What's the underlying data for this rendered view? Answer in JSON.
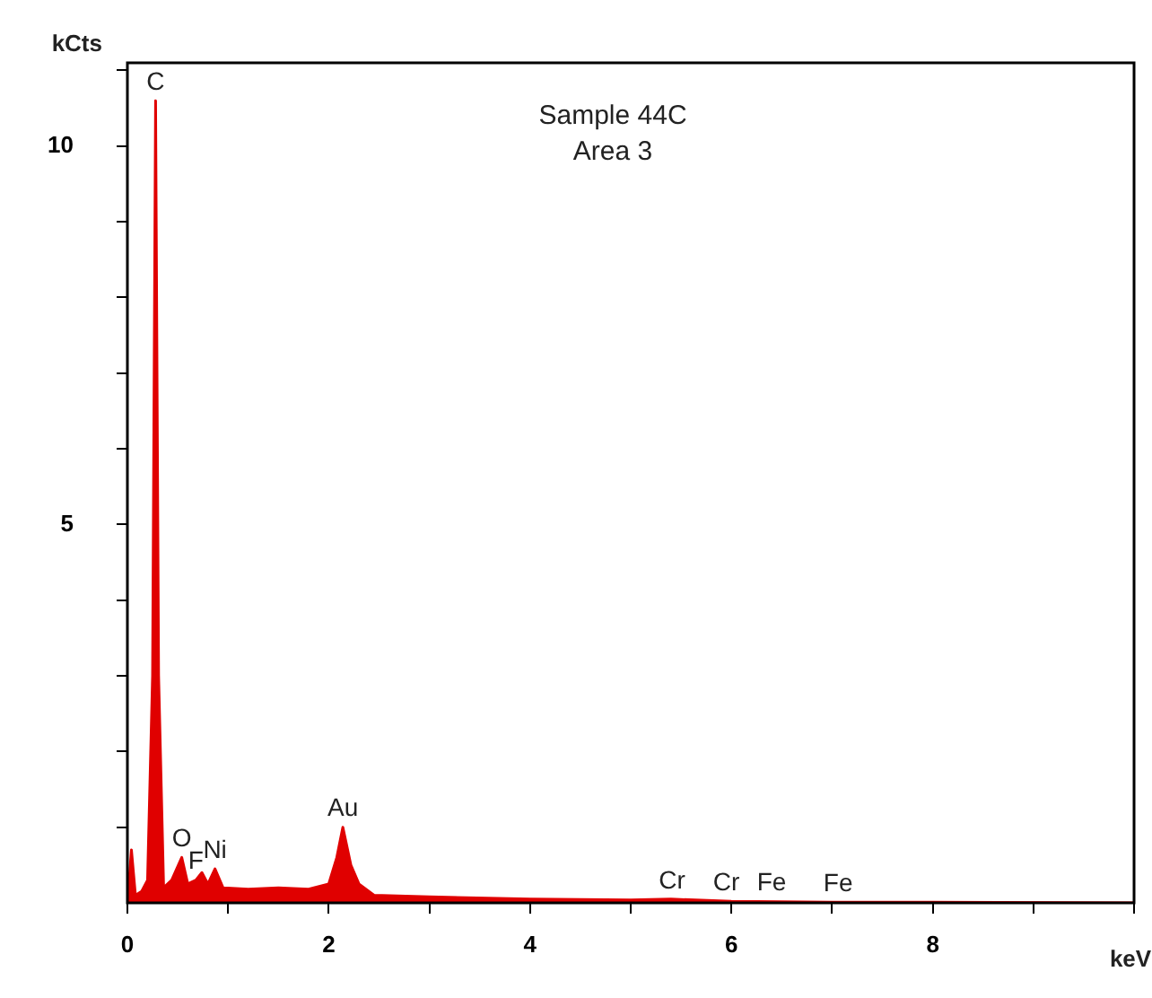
{
  "chart_data": {
    "type": "area",
    "title": "Sample 44C",
    "subtitle": "Area 3",
    "xlabel": "keV",
    "ylabel": "kCts",
    "x": [
      0,
      0.04,
      0.08,
      0.14,
      0.2,
      0.25,
      0.28,
      0.31,
      0.36,
      0.44,
      0.54,
      0.6,
      0.68,
      0.74,
      0.8,
      0.87,
      0.95,
      1.2,
      1.5,
      1.8,
      2.0,
      2.08,
      2.14,
      2.22,
      2.3,
      2.45,
      3,
      4,
      5,
      5.4,
      6,
      7,
      8,
      10
    ],
    "series": [
      {
        "color": "#e00000",
        "values": [
          0,
          0.7,
          0.1,
          0.15,
          0.3,
          3,
          10.6,
          3,
          0.2,
          0.3,
          0.6,
          0.25,
          0.3,
          0.4,
          0.25,
          0.45,
          0.2,
          0.18,
          0.2,
          0.18,
          0.25,
          0.6,
          1.0,
          0.5,
          0.25,
          0.1,
          0.08,
          0.05,
          0.04,
          0.05,
          0.02,
          0.01,
          0.01,
          0
        ]
      }
    ],
    "xlim": [
      0,
      10
    ],
    "ylim": [
      0,
      11.1
    ],
    "xticks": [
      0,
      {
        "value": 1,
        "label": null
      },
      2,
      {
        "value": 3,
        "label": null
      },
      4,
      {
        "value": 5,
        "label": null
      },
      6,
      {
        "value": 7,
        "label": null
      },
      8,
      {
        "value": 9,
        "label": null
      },
      {
        "value": 10,
        "label": null
      }
    ],
    "yticks": [
      {
        "value": 1,
        "label": null
      },
      {
        "value": 2,
        "label": null
      },
      {
        "value": 3,
        "label": null
      },
      {
        "value": 4,
        "label": null
      },
      5,
      {
        "value": 6,
        "label": null
      },
      {
        "value": 7,
        "label": null
      },
      {
        "value": 8,
        "label": null
      },
      {
        "value": 9,
        "label": null
      },
      10,
      {
        "value": 11,
        "label": null
      }
    ],
    "grid": false,
    "legend": false,
    "annotations": [
      {
        "text": "C",
        "x": 0.28,
        "y": 10.6
      },
      {
        "text": "O",
        "x": 0.54,
        "y": 0.6
      },
      {
        "text": "F",
        "x": 0.68,
        "y": 0.3
      },
      {
        "text": "Ni",
        "x": 0.87,
        "y": 0.45
      },
      {
        "text": "Au",
        "x": 2.14,
        "y": 1.0
      },
      {
        "text": "Cr",
        "x": 5.41,
        "y": 0.05
      },
      {
        "text": "Cr",
        "x": 5.95,
        "y": 0.02
      },
      {
        "text": "Fe",
        "x": 6.4,
        "y": 0.02
      },
      {
        "text": "Fe",
        "x": 7.06,
        "y": 0.01
      }
    ]
  }
}
